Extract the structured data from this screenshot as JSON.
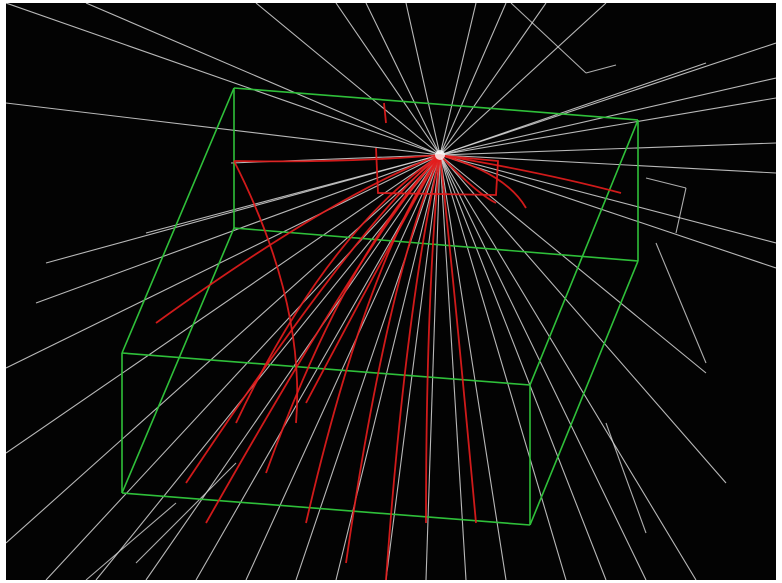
{
  "scene": {
    "background": "#030303",
    "frame_color": "#ffffff",
    "detector_color": "#2fc03a",
    "neutral_track_color": "#d8d8d8",
    "charged_track_color": "#e21c1c",
    "vertex_color": "#ffffff"
  }
}
